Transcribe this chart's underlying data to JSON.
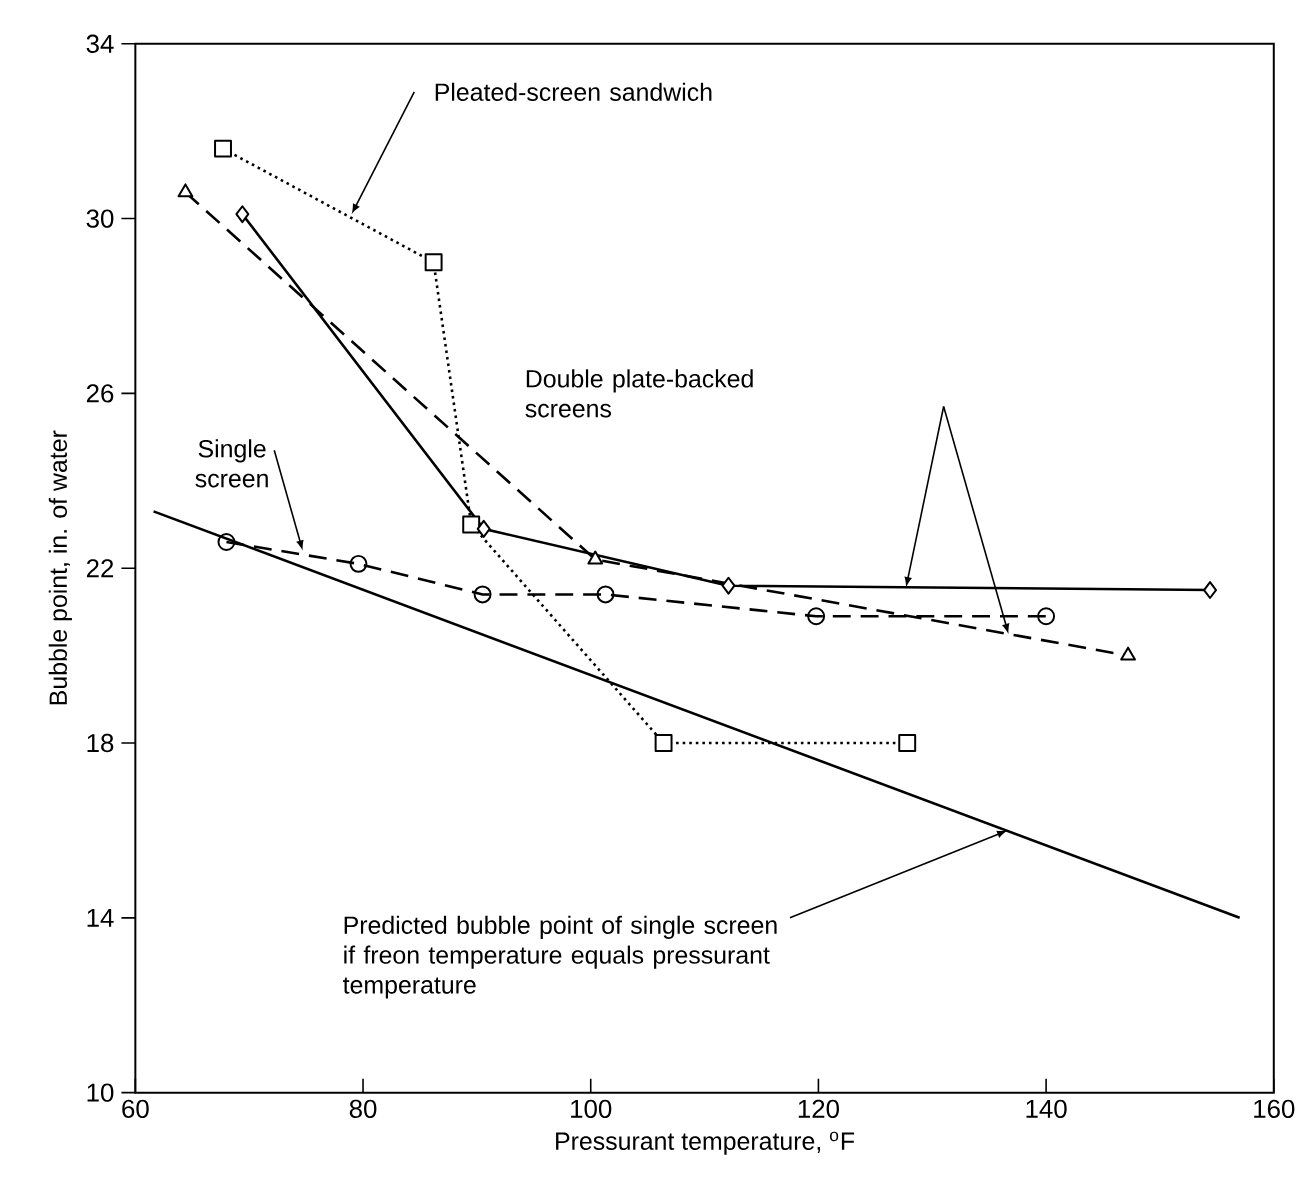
{
  "chart_data": {
    "type": "line",
    "xlabel": "Pressurant temperature, $^{o}$F",
    "ylabel": "Bubble point, in. of water",
    "xlim": [
      60,
      160
    ],
    "ylim": [
      10,
      34
    ],
    "xticks": [
      60,
      80,
      100,
      120,
      140,
      160
    ],
    "yticks": [
      10,
      14,
      18,
      22,
      26,
      30,
      34
    ],
    "grid": false,
    "series": [
      {
        "color": "#000000",
        "marker": "square",
        "line_style": "dotted",
        "x": [
          67.7,
          86.2,
          89.5,
          106.4,
          127.8
        ],
        "values": [
          31.6,
          29.0,
          23.0,
          18.0,
          18.0
        ]
      },
      {
        "color": "#000000",
        "marker": "diamond",
        "line_style": "solid",
        "x": [
          69.4,
          90.6,
          112.1,
          154.4
        ],
        "values": [
          30.1,
          22.9,
          21.6,
          21.5
        ]
      },
      {
        "color": "#000000",
        "marker": "triangle",
        "line_style": "dashed",
        "x": [
          64.4,
          100.4,
          147.2
        ],
        "values": [
          30.6,
          22.2,
          20.0
        ]
      },
      {
        "color": "#000000",
        "marker": "circle",
        "line_style": "dashed",
        "x": [
          68.0,
          79.6,
          90.5,
          101.3,
          119.8,
          140.0
        ],
        "values": [
          22.6,
          22.1,
          21.4,
          21.4,
          20.9,
          20.9
        ]
      },
      {
        "color": "#000000",
        "marker": "none",
        "line_style": "solid",
        "x": [
          61.6,
          157.0
        ],
        "values": [
          23.3,
          14.0
        ]
      }
    ],
    "annotations": [
      {
        "text": "Pleated-screen sandwich",
        "x": 79,
        "y": 30.1
      },
      "Double plate-backed screens",
      {
        "text": "Single screen",
        "x": 74.7,
        "y": 22.4
      },
      {
        "text": "Predicted bubble point of single screen if freon temperature equals pressurant temperature",
        "x": 136.6,
        "y": 16.0
      }
    ]
  }
}
